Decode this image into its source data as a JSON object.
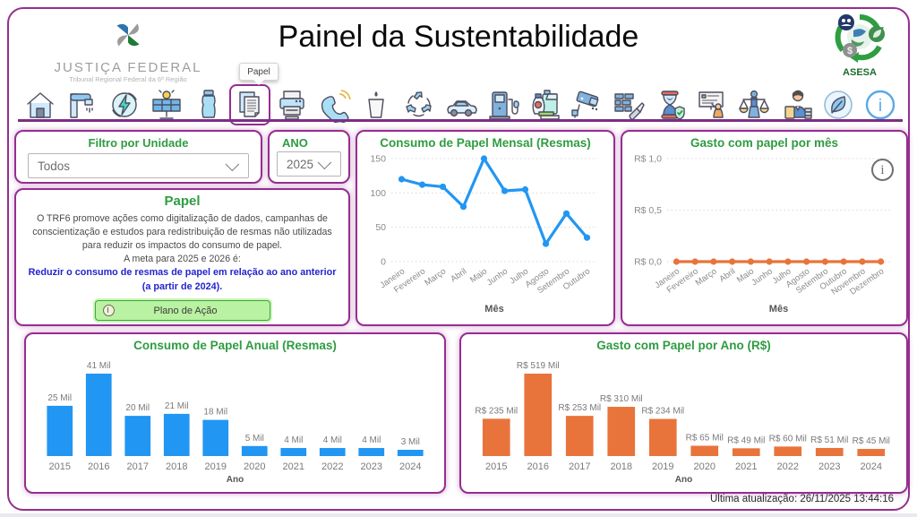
{
  "page": {
    "title": "Painel da Sustentabilidade",
    "last_update": "Última atualização: 26/11/2025 13:44:16"
  },
  "logo": {
    "org": "JUSTIÇA FEDERAL",
    "sub": "Tribunal Regional Federal da 6ª Região",
    "asesa": "ASESA"
  },
  "toolbar": {
    "selected_tooltip": "Papel",
    "icons": [
      {
        "name": "home-icon",
        "selected": false
      },
      {
        "name": "water-faucet-icon",
        "selected": false
      },
      {
        "name": "energy-icon",
        "selected": false
      },
      {
        "name": "solar-panel-icon",
        "selected": false
      },
      {
        "name": "water-bottle-icon",
        "selected": false
      },
      {
        "name": "paper-icon",
        "selected": true
      },
      {
        "name": "printer-icon",
        "selected": false
      },
      {
        "name": "telephone-icon",
        "selected": false
      },
      {
        "name": "disposable-cup-icon",
        "selected": false
      },
      {
        "name": "recycle-icon",
        "selected": false
      },
      {
        "name": "car-icon",
        "selected": false
      },
      {
        "name": "fuel-pump-icon",
        "selected": false
      },
      {
        "name": "cleaning-supplies-icon",
        "selected": false
      },
      {
        "name": "security-camera-icon",
        "selected": false
      },
      {
        "name": "construction-icon",
        "selected": false
      },
      {
        "name": "hourglass-icon",
        "selected": false
      },
      {
        "name": "presentation-icon",
        "selected": false
      },
      {
        "name": "scales-icon",
        "selected": false
      },
      {
        "name": "office-worker-icon",
        "selected": false
      },
      {
        "name": "leaf-icon",
        "selected": false
      },
      {
        "name": "info-icon",
        "selected": false
      }
    ]
  },
  "filters": {
    "unit_label": "Filtro por Unidade",
    "unit_value": "Todos",
    "year_label": "ANO",
    "year_value": "2025"
  },
  "papel_card": {
    "title": "Papel",
    "body": "O TRF6 promove ações como digitalização de dados, campanhas de conscientização e estudos para redistribuição de resmas não utilizadas para reduzir os impactos do consumo de papel.",
    "meta_line": "A meta para 2025 e 2026 é:",
    "goal": "Reduzir o consumo de resmas de papel em relação ao ano anterior (a partir de 2024).",
    "action_button": "Plano de Ação"
  },
  "colors": {
    "purple": "#962d91",
    "green": "#2e9c41",
    "blue": "#2196f3",
    "orange": "#e8743b",
    "goal_blue": "#2323cf"
  },
  "chart_data": [
    {
      "type": "line",
      "title": "Consumo de Papel Mensal (Resmas)",
      "x": [
        "Janeiro",
        "Fevereiro",
        "Março",
        "Abril",
        "Maio",
        "Junho",
        "Julho",
        "Agosto",
        "Setembro",
        "Outubro"
      ],
      "values": [
        120,
        112,
        109,
        80,
        150,
        103,
        105,
        26,
        70,
        35
      ],
      "yticks": [
        0,
        50,
        100,
        150
      ],
      "ytick_labels": [
        "0",
        "50",
        "100",
        "150"
      ],
      "ylim": [
        0,
        150
      ],
      "xlabel": "Mês",
      "color": "#2196f3",
      "grid": true,
      "info_icon": false
    },
    {
      "type": "line",
      "title": "Gasto com papel por mês",
      "x": [
        "Janeiro",
        "Fevereiro",
        "Março",
        "Abril",
        "Maio",
        "Junho",
        "Julho",
        "Agosto",
        "Setembro",
        "Outubro",
        "Novembro",
        "Dezembro"
      ],
      "values": [
        0,
        0,
        0,
        0,
        0,
        0,
        0,
        0,
        0,
        0,
        0,
        0
      ],
      "yticks": [
        0,
        0.5,
        1.0
      ],
      "ytick_labels": [
        "R$ 0,0",
        "R$ 0,5",
        "R$ 1,0"
      ],
      "ylim": [
        0,
        1.0
      ],
      "xlabel": "Mês",
      "color": "#e8743b",
      "grid": true,
      "info_icon": true
    },
    {
      "type": "bar",
      "title": "Consumo de Papel Anual (Resmas)",
      "categories": [
        "2015",
        "2016",
        "2017",
        "2018",
        "2019",
        "2020",
        "2021",
        "2022",
        "2023",
        "2024"
      ],
      "values": [
        25,
        41,
        20,
        21,
        18,
        5,
        4,
        4,
        4,
        3
      ],
      "value_labels": [
        "25 Mil",
        "41 Mil",
        "20 Mil",
        "21 Mil",
        "18 Mil",
        "5 Mil",
        "4 Mil",
        "4 Mil",
        "4 Mil",
        "3 Mil"
      ],
      "ylim": [
        0,
        41
      ],
      "xlabel": "Ano",
      "color": "#2196f3"
    },
    {
      "type": "bar",
      "title": "Gasto com Papel por Ano (R$)",
      "categories": [
        "2015",
        "2016",
        "2017",
        "2018",
        "2019",
        "2020",
        "2021",
        "2022",
        "2023",
        "2024"
      ],
      "values": [
        235,
        519,
        253,
        310,
        234,
        65,
        49,
        60,
        51,
        45
      ],
      "value_labels": [
        "R$ 235 Mil",
        "R$ 519 Mil",
        "R$ 253 Mil",
        "R$ 310 Mil",
        "R$ 234 Mil",
        "R$ 65 Mil",
        "R$ 49 Mil",
        "R$ 60 Mil",
        "R$ 51 Mil",
        "R$ 45 Mil"
      ],
      "ylim": [
        0,
        519
      ],
      "xlabel": "Ano",
      "color": "#e8743b"
    }
  ]
}
